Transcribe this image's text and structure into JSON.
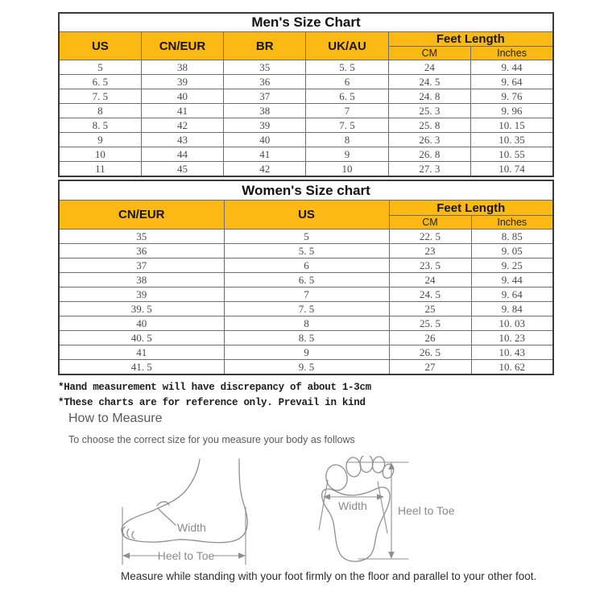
{
  "colors": {
    "header_fill": "#FCB813",
    "table_border": "#3a3a3a",
    "grid_line": "#6e6e6e",
    "data_text": "#4a4a4a",
    "heading_gray": "#5a5a5a",
    "diagram_gray": "#8f8f8f"
  },
  "mens_chart": {
    "title": "Men's Size Chart",
    "columns": [
      "US",
      "CN/EUR",
      "BR",
      "UK/AU"
    ],
    "feet_length_label": "Feet Length",
    "feet_length_sub": [
      "CM",
      "Inches"
    ],
    "rows": [
      [
        "5",
        "38",
        "35",
        "5. 5",
        "24",
        "9. 44"
      ],
      [
        "6. 5",
        "39",
        "36",
        "6",
        "24. 5",
        "9. 64"
      ],
      [
        "7. 5",
        "40",
        "37",
        "6. 5",
        "24. 8",
        "9. 76"
      ],
      [
        "8",
        "41",
        "38",
        "7",
        "25. 3",
        "9. 96"
      ],
      [
        "8. 5",
        "42",
        "39",
        "7. 5",
        "25. 8",
        "10. 15"
      ],
      [
        "9",
        "43",
        "40",
        "8",
        "26. 3",
        "10. 35"
      ],
      [
        "10",
        "44",
        "41",
        "9",
        "26. 8",
        "10. 55"
      ],
      [
        "11",
        "45",
        "42",
        "10",
        "27. 3",
        "10. 74"
      ]
    ]
  },
  "womens_chart": {
    "title": "Women's Size chart",
    "columns": [
      "CN/EUR",
      "US"
    ],
    "feet_length_label": "Feet Length",
    "feet_length_sub": [
      "CM",
      "Inches"
    ],
    "rows": [
      [
        "35",
        "5",
        "22. 5",
        "8. 85"
      ],
      [
        "36",
        "5. 5",
        "23",
        "9. 05"
      ],
      [
        "37",
        "6",
        "23. 5",
        "9. 25"
      ],
      [
        "38",
        "6. 5",
        "24",
        "9. 44"
      ],
      [
        "39",
        "7",
        "24. 5",
        "9. 64"
      ],
      [
        "39. 5",
        "7. 5",
        "25",
        "9. 84"
      ],
      [
        "40",
        "8",
        "25. 5",
        "10. 03"
      ],
      [
        "40. 5",
        "8. 5",
        "26",
        "10. 23"
      ],
      [
        "41",
        "9",
        "26. 5",
        "10. 43"
      ],
      [
        "41. 5",
        "9. 5",
        "27",
        "10. 62"
      ]
    ]
  },
  "notes": {
    "line1": "*Hand measurement will have discrepancy of about 1-3cm",
    "line2": "*These charts are for reference only. Prevail in kind"
  },
  "how_to_measure": {
    "heading": "How to Measure",
    "subheading": "To choose the correct size for you measure your body as follows",
    "caption": "Measure while standing with your foot firmly on the floor and parallel to your other foot."
  },
  "diagrams": {
    "side_view": {
      "width_label": "Width",
      "length_label": "Heel to Toe"
    },
    "sole_view": {
      "width_label": "Width",
      "length_label": "Heel to Toe"
    }
  }
}
